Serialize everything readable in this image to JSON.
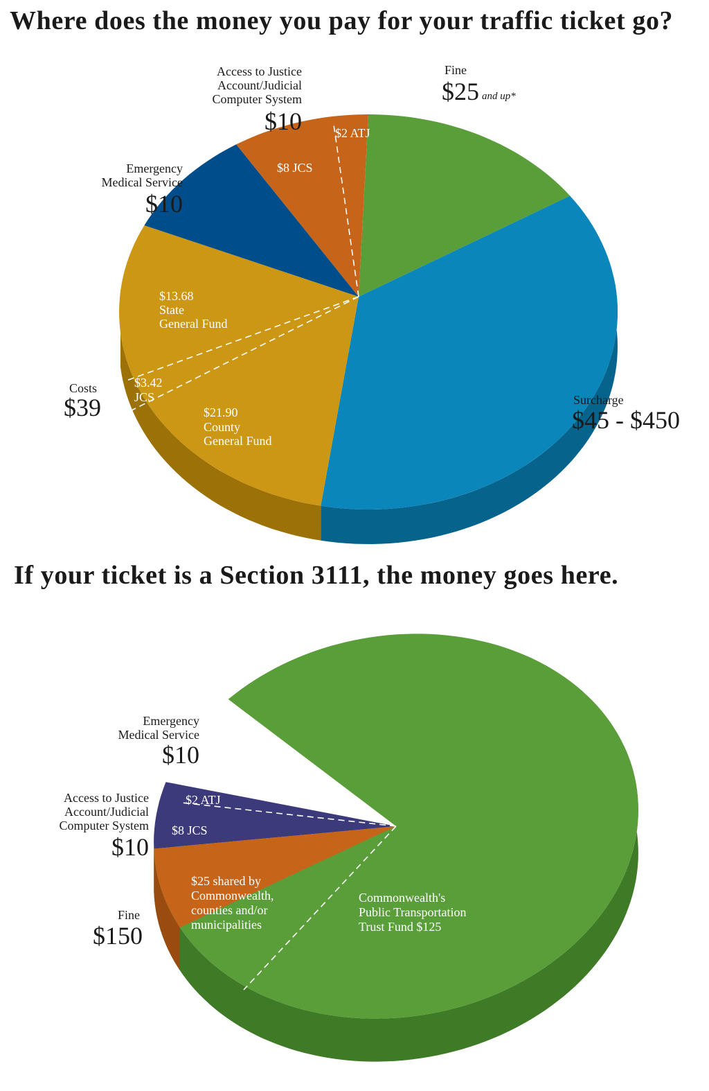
{
  "chart_data": [
    {
      "type": "pie",
      "title": "Where does the money you pay for your traffic ticket go?",
      "slices": [
        {
          "key": "fine",
          "label": "Fine",
          "value": "$25",
          "value_suffix": "and up*",
          "color": "#5a9e3a",
          "side": "#3f7a26"
        },
        {
          "key": "surcharge",
          "label": "Surcharge",
          "value": "$45 - $450",
          "color": "#0a86bb",
          "side": "#06638c"
        },
        {
          "key": "costs",
          "label": "Costs",
          "value": "$39",
          "color": "#cc9714",
          "side": "#9c7208",
          "sub": [
            {
              "label": "State General Fund",
              "amount": "$13.68"
            },
            {
              "label": "JCS",
              "amount": "$3.42"
            },
            {
              "label": "County General Fund",
              "amount": "$21.90"
            }
          ]
        },
        {
          "key": "ems",
          "label": "Emergency Medical Service",
          "value": "$10",
          "color": "#004d8b",
          "side": "#003a68"
        },
        {
          "key": "atj",
          "label": "Access to Justice Account/Judicial Computer System",
          "value": "$10",
          "color": "#c6651a",
          "side": "#9a4c10",
          "sub": [
            {
              "label": "JCS",
              "amount": "$8"
            },
            {
              "label": "ATJ",
              "amount": "$2"
            }
          ]
        }
      ],
      "label_lines": {
        "atj": [
          "Access to Justice",
          "Account/Judicial",
          "Computer System"
        ],
        "ems": [
          "Emergency",
          "Medical Service"
        ],
        "state_fund": [
          "$13.68",
          "State",
          "General Fund"
        ],
        "county_fund": [
          "$21.90",
          "County",
          "General Fund"
        ],
        "costs_jcs": [
          "$3.42",
          "JCS"
        ],
        "atj_jcs": "$8 JCS",
        "atj_atj": "$2 ATJ"
      }
    },
    {
      "type": "pie",
      "title": "If your ticket is a Section 3111, the money goes here.",
      "slices": [
        {
          "key": "fine",
          "label": "Fine",
          "value": "$150",
          "color": "#5a9e3a",
          "side": "#3f7a26",
          "sub": [
            {
              "label": "Commonwealth's Public Transportation Trust Fund",
              "amount": "$125"
            },
            {
              "label": "shared by Commonwealth, counties and/or municipalities",
              "amount": "$25"
            }
          ]
        },
        {
          "key": "ems",
          "label": "Emergency Medical Service",
          "value": "$10",
          "color": "#3d3a7c",
          "side": "#2c2a5c"
        },
        {
          "key": "atj",
          "label": "Access to Justice Account/Judicial Computer System",
          "value": "$10",
          "color": "#c6651a",
          "side": "#9a4c10",
          "sub": [
            {
              "label": "ATJ",
              "amount": "$2"
            },
            {
              "label": "JCS",
              "amount": "$8"
            }
          ]
        }
      ],
      "label_lines": {
        "ems": [
          "Emergency",
          "Medical Service"
        ],
        "atj": [
          "Access to Justice",
          "Account/Judicial",
          "Computer System"
        ],
        "shared": [
          "$25 shared by",
          "Commonwealth,",
          "counties and/or",
          "municipalities"
        ],
        "trust": [
          "Commonwealth's",
          "Public Transportation",
          "Trust Fund $125"
        ],
        "atj_atj": "$2 ATJ",
        "atj_jcs": "$8 JCS"
      }
    }
  ]
}
